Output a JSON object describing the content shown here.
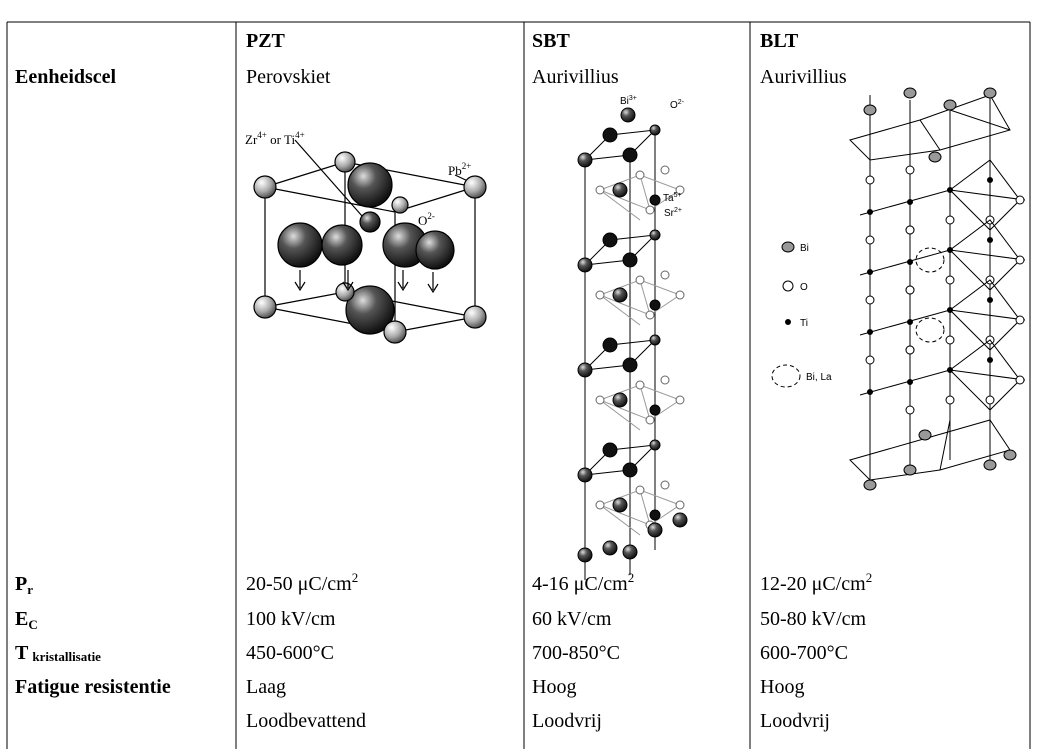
{
  "table": {
    "columns": [
      "PZT",
      "SBT",
      "BLT"
    ],
    "rows": [
      {
        "label": "Eenheidscel",
        "cells": [
          "Perovskiet",
          "Aurivillius",
          "Aurivillius"
        ]
      },
      {
        "label": {
          "text": "P",
          "sub": "r"
        },
        "cells": [
          {
            "text": "20-50 μC/cm",
            "sup": "2"
          },
          {
            "text": "4-16 μC/cm",
            "sup": "2"
          },
          {
            "text": "12-20 μC/cm",
            "sup": "2"
          }
        ]
      },
      {
        "label": {
          "text": "E",
          "sub": "C"
        },
        "cells": [
          "100 kV/cm",
          "60 kV/cm",
          "50-80 kV/cm"
        ]
      },
      {
        "label": {
          "text": "T",
          "sub": "kristallisatie"
        },
        "cells": [
          "450-600°C",
          "700-850°C",
          "600-700°C"
        ]
      },
      {
        "label": "Fatigue resistentie",
        "cells": [
          "Laag",
          "Hoog",
          "Hoog"
        ]
      },
      {
        "cells": [
          "Loodbevattend",
          "Loodvrij",
          "Loodvrij"
        ]
      }
    ]
  },
  "figures": {
    "pzt": {
      "labels": [
        {
          "text": "Zr",
          "sup": "4+"
        },
        {
          "text": " or Ti",
          "sup": "4+"
        },
        {
          "text": "Pb",
          "sup": "2+"
        },
        {
          "text": "O",
          "sup": "2-"
        }
      ]
    },
    "sbt": {
      "labels": [
        {
          "text": "Bi",
          "sup": "3+"
        },
        {
          "text": "O",
          "sup": "2-"
        },
        {
          "text": "Ta",
          "sup": "5+"
        },
        {
          "text": "Sr",
          "sup": "2+"
        }
      ]
    },
    "blt": {
      "legend": [
        "Bi",
        "O",
        "Ti",
        "Bi, La"
      ]
    }
  }
}
